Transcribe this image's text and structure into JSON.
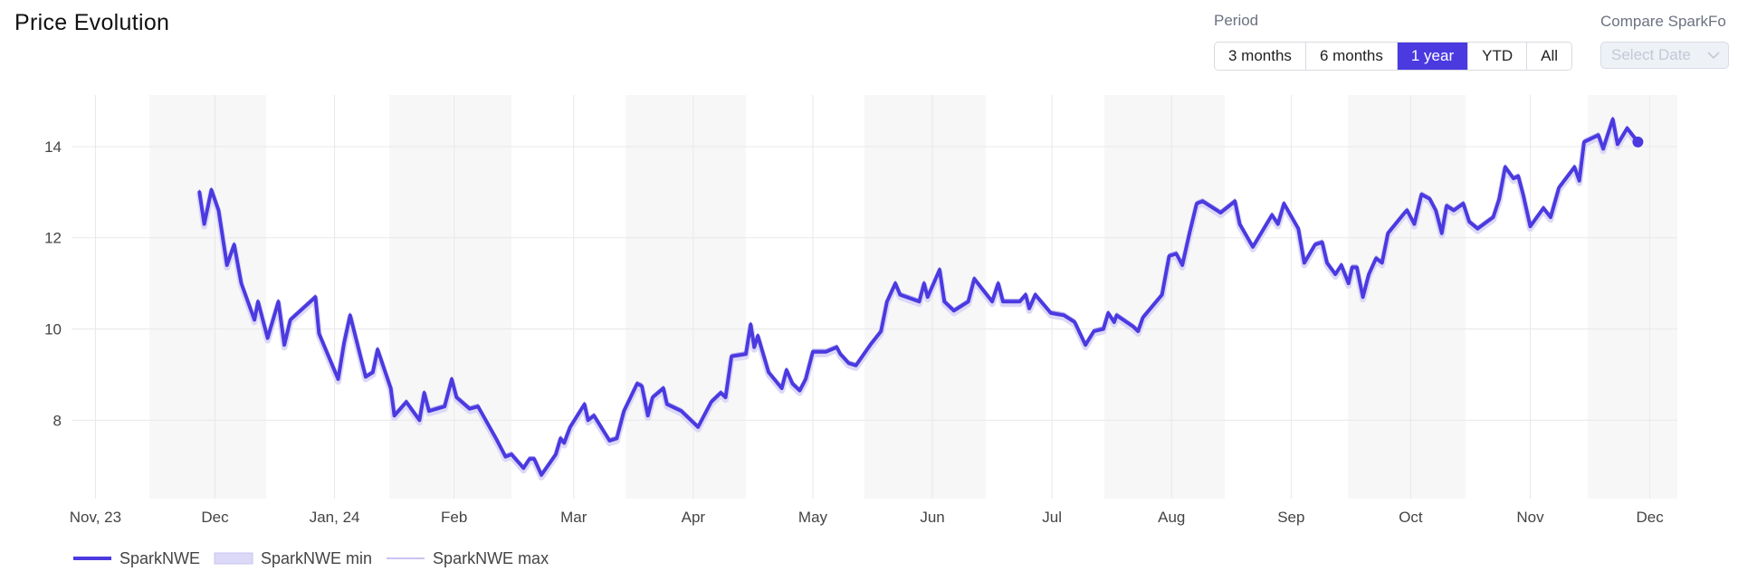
{
  "header": {
    "title": "Price Evolution"
  },
  "controls": {
    "period_label": "Period",
    "periods": [
      {
        "label": "3 months",
        "selected": false
      },
      {
        "label": "6 months",
        "selected": false
      },
      {
        "label": "1 year",
        "selected": true
      },
      {
        "label": "YTD",
        "selected": false
      },
      {
        "label": "All",
        "selected": false
      }
    ],
    "compare_label": "Compare SparkFo",
    "compare_placeholder": "Select Date"
  },
  "chart_data": {
    "type": "line",
    "grid": true,
    "legend": "bottom-left",
    "xlim": [
      -0.2,
      13.23
    ],
    "xticks": [
      {
        "value": 0,
        "label": "Nov, 23"
      },
      {
        "value": 1,
        "label": "Dec"
      },
      {
        "value": 2,
        "label": "Jan, 24"
      },
      {
        "value": 3,
        "label": "Feb"
      },
      {
        "value": 4,
        "label": "Mar"
      },
      {
        "value": 5,
        "label": "Apr"
      },
      {
        "value": 6,
        "label": "May"
      },
      {
        "value": 7,
        "label": "Jun"
      },
      {
        "value": 8,
        "label": "Jul"
      },
      {
        "value": 9,
        "label": "Aug"
      },
      {
        "value": 10,
        "label": "Sep"
      },
      {
        "value": 11,
        "label": "Oct"
      },
      {
        "value": 12,
        "label": "Nov"
      },
      {
        "value": 13,
        "label": "Dec"
      }
    ],
    "ylim": [
      6.28,
      15.13
    ],
    "yticks": [
      8,
      10,
      12,
      14
    ],
    "x": [
      0.87,
      0.91,
      0.97,
      1.03,
      1.1,
      1.16,
      1.22,
      1.33,
      1.36,
      1.44,
      1.53,
      1.58,
      1.63,
      1.84,
      1.87,
      2.03,
      2.08,
      2.13,
      2.26,
      2.32,
      2.36,
      2.47,
      2.5,
      2.6,
      2.71,
      2.75,
      2.79,
      2.92,
      2.98,
      3.02,
      3.13,
      3.2,
      3.35,
      3.43,
      3.48,
      3.58,
      3.63,
      3.67,
      3.73,
      3.85,
      3.89,
      3.92,
      3.97,
      4.09,
      4.12,
      4.17,
      4.3,
      4.36,
      4.42,
      4.53,
      4.57,
      4.62,
      4.66,
      4.75,
      4.78,
      4.9,
      5.04,
      5.15,
      5.23,
      5.27,
      5.32,
      5.44,
      5.48,
      5.51,
      5.54,
      5.63,
      5.74,
      5.78,
      5.83,
      5.89,
      5.94,
      6.0,
      6.11,
      6.2,
      6.23,
      6.3,
      6.36,
      6.48,
      6.57,
      6.62,
      6.69,
      6.73,
      6.89,
      6.93,
      6.96,
      7.06,
      7.1,
      7.18,
      7.3,
      7.35,
      7.44,
      7.5,
      7.55,
      7.59,
      7.73,
      7.78,
      7.81,
      7.86,
      7.99,
      8.1,
      8.19,
      8.28,
      8.35,
      8.43,
      8.47,
      8.52,
      8.54,
      8.68,
      8.72,
      8.76,
      8.92,
      8.98,
      9.04,
      9.09,
      9.15,
      9.21,
      9.26,
      9.41,
      9.53,
      9.57,
      9.68,
      9.84,
      9.89,
      9.94,
      10.06,
      10.11,
      10.2,
      10.26,
      10.3,
      10.37,
      10.42,
      10.48,
      10.51,
      10.55,
      10.6,
      10.65,
      10.71,
      10.76,
      10.81,
      10.95,
      10.97,
      11.03,
      11.09,
      11.16,
      11.21,
      11.26,
      11.3,
      11.36,
      11.44,
      11.49,
      11.56,
      11.69,
      11.74,
      11.79,
      11.86,
      11.9,
      11.94,
      12.0,
      12.11,
      12.17,
      12.24,
      12.37,
      12.41,
      12.45,
      12.57,
      12.61,
      12.64,
      12.69,
      12.73,
      12.81,
      12.9
    ],
    "series": [
      {
        "name": "SparkNWE",
        "color": "#4b3ae0",
        "style": "thick",
        "values": [
          13.0,
          12.3,
          13.05,
          12.6,
          11.4,
          11.85,
          11.0,
          10.2,
          10.6,
          9.8,
          10.6,
          9.65,
          10.2,
          10.7,
          9.9,
          8.9,
          9.7,
          10.3,
          8.95,
          9.05,
          9.55,
          8.7,
          8.1,
          8.4,
          8.0,
          8.6,
          8.2,
          8.3,
          8.9,
          8.5,
          8.25,
          8.3,
          7.6,
          7.2,
          7.25,
          6.95,
          7.15,
          7.15,
          6.8,
          7.25,
          7.6,
          7.5,
          7.85,
          8.35,
          8.0,
          8.1,
          7.55,
          7.6,
          8.2,
          8.8,
          8.75,
          8.1,
          8.5,
          8.7,
          8.35,
          8.2,
          7.85,
          8.4,
          8.6,
          8.5,
          9.4,
          9.45,
          10.1,
          9.6,
          9.85,
          9.05,
          8.7,
          9.1,
          8.8,
          8.65,
          8.9,
          9.5,
          9.5,
          9.6,
          9.45,
          9.25,
          9.2,
          9.65,
          9.95,
          10.6,
          11.0,
          10.75,
          10.6,
          11.0,
          10.7,
          11.3,
          10.6,
          10.4,
          10.6,
          11.1,
          10.8,
          10.6,
          11.0,
          10.6,
          10.6,
          10.75,
          10.45,
          10.75,
          10.35,
          10.3,
          10.15,
          9.65,
          9.95,
          10.0,
          10.35,
          10.15,
          10.3,
          10.05,
          9.95,
          10.25,
          10.75,
          11.6,
          11.65,
          11.4,
          12.1,
          12.75,
          12.8,
          12.55,
          12.8,
          12.3,
          11.8,
          12.5,
          12.3,
          12.75,
          12.2,
          11.45,
          11.85,
          11.9,
          11.45,
          11.2,
          11.4,
          11.0,
          11.35,
          11.35,
          10.7,
          11.2,
          11.55,
          11.45,
          12.1,
          12.55,
          12.6,
          12.3,
          12.95,
          12.85,
          12.6,
          12.1,
          12.7,
          12.6,
          12.75,
          12.35,
          12.2,
          12.45,
          12.85,
          13.55,
          13.3,
          13.35,
          12.95,
          12.25,
          12.65,
          12.45,
          13.1,
          13.55,
          13.25,
          14.1,
          14.25,
          13.95,
          14.2,
          14.6,
          14.05,
          14.4,
          14.1
        ]
      },
      {
        "name": "SparkNWE min",
        "color": "#dcd8f7",
        "style": "band",
        "values": [
          12.95,
          12.25,
          13.0,
          12.55,
          11.35,
          11.8,
          10.95,
          10.15,
          10.55,
          9.75,
          10.55,
          9.6,
          10.15,
          10.65,
          9.85,
          8.85,
          9.65,
          10.25,
          8.9,
          9.0,
          9.5,
          8.65,
          8.05,
          8.35,
          7.95,
          8.55,
          8.15,
          8.25,
          8.85,
          8.45,
          8.2,
          8.25,
          7.55,
          7.15,
          7.2,
          6.9,
          7.1,
          7.1,
          6.75,
          7.2,
          7.55,
          7.45,
          7.8,
          8.3,
          7.95,
          8.05,
          7.5,
          7.55,
          8.15,
          8.75,
          8.7,
          8.05,
          8.45,
          8.65,
          8.3,
          8.15,
          7.8,
          8.35,
          8.55,
          8.45,
          9.35,
          9.4,
          10.05,
          9.55,
          9.8,
          9.0,
          8.65,
          9.05,
          8.75,
          8.6,
          8.85,
          9.45,
          9.45,
          9.55,
          9.4,
          9.2,
          9.15,
          9.6,
          9.9,
          10.55,
          10.95,
          10.7,
          10.55,
          10.95,
          10.65,
          11.25,
          10.55,
          10.35,
          10.55,
          11.05,
          10.75,
          10.55,
          10.95,
          10.55,
          10.55,
          10.7,
          10.4,
          10.7,
          10.3,
          10.25,
          10.1,
          9.6,
          9.9,
          9.95,
          10.3,
          10.1,
          10.25,
          10.0,
          9.9,
          10.2,
          10.7,
          11.55,
          11.6,
          11.35,
          12.05,
          12.7,
          12.75,
          12.5,
          12.75,
          12.25,
          11.75,
          12.45,
          12.25,
          12.7,
          12.15,
          11.4,
          11.8,
          11.85,
          11.4,
          11.15,
          11.35,
          10.95,
          11.3,
          11.3,
          10.65,
          11.15,
          11.5,
          11.4,
          12.05,
          12.5,
          12.55,
          12.25,
          12.9,
          12.8,
          12.55,
          12.05,
          12.65,
          12.55,
          12.7,
          12.3,
          12.15,
          12.4,
          12.8,
          13.5,
          13.25,
          13.3,
          12.9,
          12.2,
          12.6,
          12.4,
          13.05,
          13.5,
          13.2,
          14.05,
          14.2,
          13.9,
          14.15,
          14.55,
          14.0,
          14.35,
          14.05
        ]
      },
      {
        "name": "SparkNWE max",
        "color": "#a9a1ec",
        "style": "thin",
        "values": [
          13.05,
          12.35,
          13.1,
          12.65,
          11.45,
          11.9,
          11.05,
          10.25,
          10.65,
          9.85,
          10.65,
          9.7,
          10.25,
          10.75,
          9.95,
          8.95,
          9.75,
          10.35,
          9.0,
          9.1,
          9.6,
          8.75,
          8.15,
          8.45,
          8.05,
          8.65,
          8.25,
          8.35,
          8.95,
          8.55,
          8.3,
          8.35,
          7.65,
          7.25,
          7.3,
          7.0,
          7.2,
          7.2,
          6.85,
          7.3,
          7.65,
          7.55,
          7.9,
          8.4,
          8.05,
          8.15,
          7.6,
          7.65,
          8.25,
          8.85,
          8.8,
          8.15,
          8.55,
          8.75,
          8.4,
          8.25,
          7.9,
          8.45,
          8.65,
          8.55,
          9.45,
          9.5,
          10.15,
          9.65,
          9.9,
          9.1,
          8.75,
          9.15,
          8.85,
          8.7,
          8.95,
          9.55,
          9.55,
          9.65,
          9.5,
          9.3,
          9.25,
          9.7,
          10.0,
          10.65,
          11.05,
          10.8,
          10.65,
          11.05,
          10.75,
          11.35,
          10.65,
          10.45,
          10.65,
          11.15,
          10.85,
          10.65,
          11.05,
          10.65,
          10.65,
          10.8,
          10.5,
          10.8,
          10.4,
          10.35,
          10.2,
          9.7,
          10.0,
          10.05,
          10.4,
          10.2,
          10.35,
          10.1,
          10.0,
          10.3,
          10.8,
          11.65,
          11.7,
          11.45,
          12.15,
          12.8,
          12.85,
          12.6,
          12.85,
          12.35,
          11.85,
          12.55,
          12.35,
          12.8,
          12.25,
          11.5,
          11.9,
          11.95,
          11.5,
          11.25,
          11.45,
          11.05,
          11.4,
          11.4,
          10.75,
          11.25,
          11.6,
          11.5,
          12.15,
          12.6,
          12.65,
          12.35,
          13.0,
          12.9,
          12.65,
          12.15,
          12.75,
          12.65,
          12.8,
          12.4,
          12.25,
          12.5,
          12.9,
          13.6,
          13.35,
          13.4,
          13.0,
          12.3,
          12.7,
          12.5,
          13.15,
          13.6,
          13.3,
          14.15,
          14.3,
          14.0,
          14.25,
          14.65,
          14.1,
          14.45,
          14.15
        ]
      }
    ]
  }
}
